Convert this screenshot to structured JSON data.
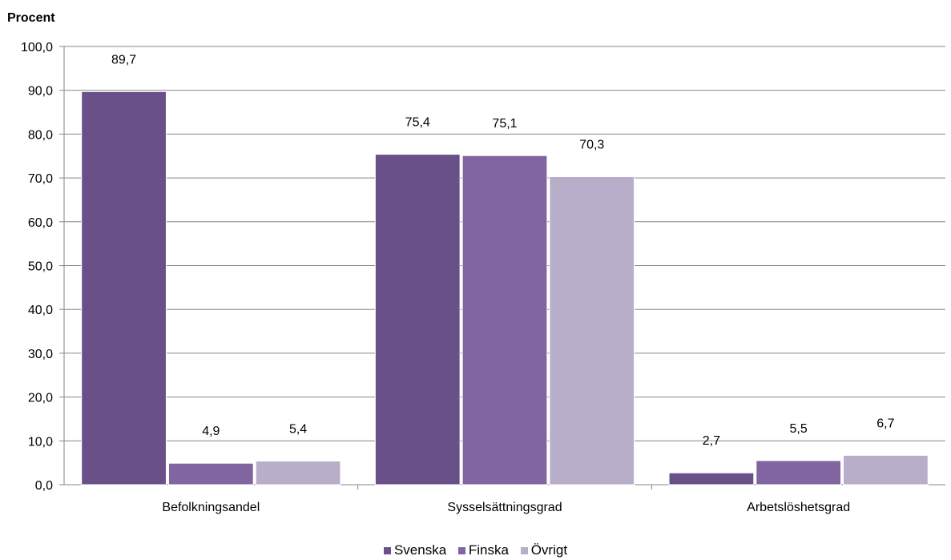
{
  "chart_data": {
    "type": "bar",
    "ylabel": "Procent",
    "ylim": [
      0,
      100
    ],
    "ytick_step": 10,
    "ytick_labels": [
      "0,0",
      "10,0",
      "20,0",
      "30,0",
      "40,0",
      "50,0",
      "60,0",
      "70,0",
      "80,0",
      "90,0",
      "100,0"
    ],
    "categories": [
      "Befolkningsandel",
      "Sysselsättningsgrad",
      "Arbetslöshetsgrad"
    ],
    "series": [
      {
        "name": "Svenska",
        "color": "#6a5089",
        "values": [
          89.7,
          75.4,
          2.7
        ],
        "labels": [
          "89,7",
          "75,4",
          "2,7"
        ]
      },
      {
        "name": "Finska",
        "color": "#8065a0",
        "values": [
          4.9,
          75.1,
          5.5
        ],
        "labels": [
          "4,9",
          "75,1",
          "5,5"
        ]
      },
      {
        "name": "Övrigt",
        "color": "#b9aeca",
        "values": [
          5.4,
          70.3,
          6.7
        ],
        "labels": [
          "5,4",
          "70,3",
          "6,7"
        ]
      }
    ],
    "grid": true,
    "legend_position": "bottom"
  }
}
